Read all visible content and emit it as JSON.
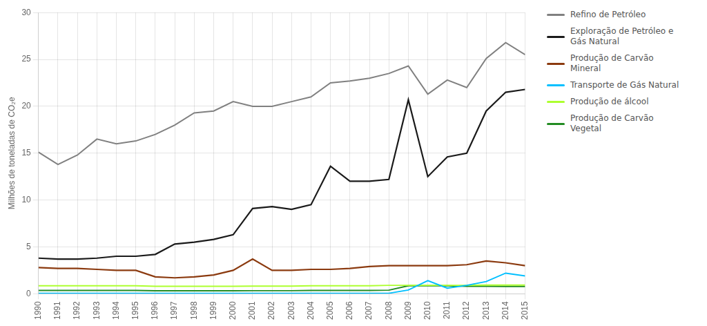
{
  "chart_data": {
    "type": "line",
    "ylabel": "Milhões de toneladas de CO₂e",
    "x": [
      1990,
      1991,
      1992,
      1993,
      1994,
      1995,
      1996,
      1997,
      1998,
      1999,
      2000,
      2001,
      2002,
      2003,
      2004,
      2005,
      2006,
      2007,
      2008,
      2009,
      2010,
      2011,
      2012,
      2013,
      2014,
      2015
    ],
    "xlim": [
      1990,
      2015
    ],
    "xticks": [
      1990,
      1991,
      1992,
      1993,
      1994,
      1995,
      1996,
      1997,
      1998,
      1999,
      2000,
      2001,
      2002,
      2003,
      2004,
      2005,
      2006,
      2007,
      2008,
      2009,
      2010,
      2011,
      2012,
      2013,
      2014,
      2015
    ],
    "ylim": [
      0,
      30
    ],
    "yticks": [
      0,
      5,
      10,
      15,
      20,
      25,
      30
    ],
    "grid": true,
    "legend": "right",
    "series": [
      {
        "name": "Refino de Petróleo",
        "color": "#808080",
        "values": [
          15.1,
          13.8,
          14.8,
          16.5,
          16.0,
          16.3,
          17.0,
          18.0,
          19.3,
          19.5,
          20.5,
          20.0,
          20.0,
          20.5,
          21.0,
          22.5,
          22.7,
          23.0,
          23.5,
          24.3,
          21.3,
          22.8,
          22.0,
          25.1,
          26.8,
          25.5
        ]
      },
      {
        "name": "Exploração de Petróleo e\nGás Natural",
        "color": "#1a1a1a",
        "values": [
          3.8,
          3.7,
          3.7,
          3.8,
          4.0,
          4.0,
          4.2,
          5.3,
          5.5,
          5.8,
          6.3,
          9.1,
          9.3,
          9.0,
          9.5,
          13.6,
          12.0,
          12.0,
          12.2,
          20.7,
          12.5,
          14.6,
          15.0,
          19.5,
          21.5,
          21.8
        ]
      },
      {
        "name": "Produção de Carvão\nMineral",
        "color": "#8B3A0F",
        "values": [
          2.8,
          2.7,
          2.7,
          2.6,
          2.5,
          2.5,
          1.8,
          1.7,
          1.8,
          2.0,
          2.5,
          3.7,
          2.5,
          2.5,
          2.6,
          2.6,
          2.7,
          2.9,
          3.0,
          3.0,
          3.0,
          3.0,
          3.1,
          3.5,
          3.3,
          3.0
        ]
      },
      {
        "name": "Transporte de Gás Natural",
        "color": "#00BFFF",
        "values": [
          0.05,
          0.05,
          0.05,
          0.05,
          0.05,
          0.05,
          0.05,
          0.05,
          0.05,
          0.05,
          0.05,
          0.05,
          0.05,
          0.05,
          0.05,
          0.05,
          0.05,
          0.05,
          0.05,
          0.4,
          1.4,
          0.6,
          0.9,
          1.3,
          2.2,
          1.9
        ]
      },
      {
        "name": "Produção de álcool",
        "color": "#ADFF2F",
        "values": [
          0.85,
          0.85,
          0.85,
          0.85,
          0.85,
          0.85,
          0.8,
          0.8,
          0.8,
          0.8,
          0.8,
          0.82,
          0.82,
          0.82,
          0.85,
          0.85,
          0.85,
          0.85,
          0.9,
          0.9,
          0.9,
          0.9,
          0.9,
          0.92,
          0.92,
          0.92
        ]
      },
      {
        "name": "Produção de Carvão\nVegetal",
        "color": "#228B22",
        "values": [
          0.35,
          0.35,
          0.35,
          0.35,
          0.35,
          0.35,
          0.32,
          0.32,
          0.32,
          0.32,
          0.32,
          0.33,
          0.33,
          0.33,
          0.35,
          0.35,
          0.35,
          0.35,
          0.38,
          0.85,
          0.85,
          0.85,
          0.8,
          0.8,
          0.78,
          0.78
        ]
      }
    ]
  }
}
